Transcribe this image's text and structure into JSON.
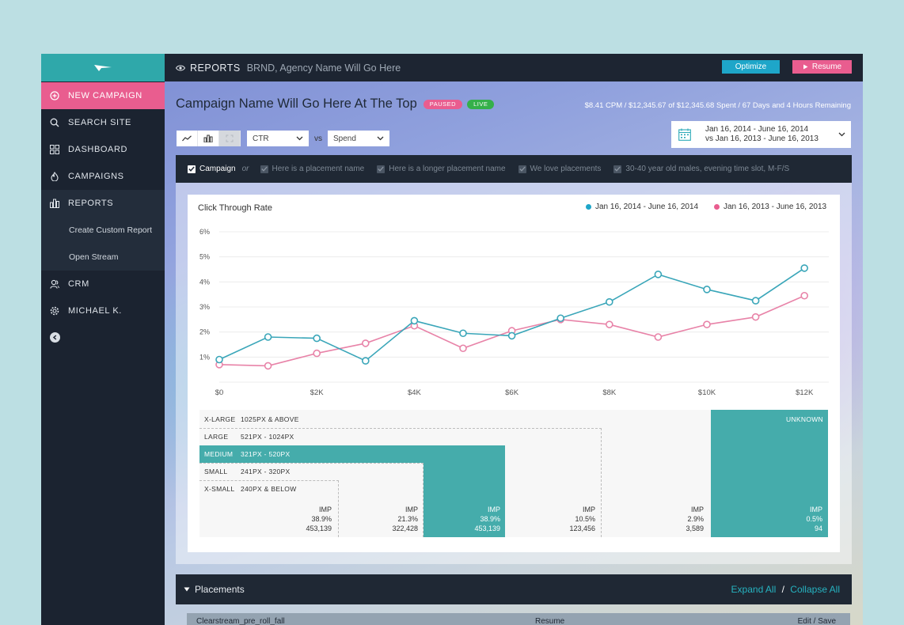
{
  "sidebar": {
    "items": [
      {
        "label": "NEW CAMPAIGN",
        "icon": "plus-circle-icon"
      },
      {
        "label": "SEARCH SITE",
        "icon": "search-icon"
      },
      {
        "label": "DASHBOARD",
        "icon": "grid-icon"
      },
      {
        "label": "CAMPAIGNS",
        "icon": "flame-icon"
      },
      {
        "label": "REPORTS",
        "icon": "bar-chart-icon"
      },
      {
        "label": "CRM",
        "icon": "users-icon"
      },
      {
        "label": "MICHAEL K.",
        "icon": "gear-icon"
      }
    ],
    "sub_items": [
      "Create Custom Report",
      "Open Stream"
    ]
  },
  "header": {
    "section": "REPORTS",
    "agency": "BRND, Agency Name Will Go Here",
    "optimize_label": "Optimize",
    "resume_label": "Resume"
  },
  "campaign": {
    "name": "Campaign Name Will Go Here At The Top",
    "badges": [
      "PAUSED",
      "LIVE"
    ],
    "spent": "$8.41 CPM / $12,345.67 of $12,345.68 Spent / 67 Days and 4 Hours Remaining"
  },
  "controls": {
    "metric": "CTR",
    "vs": "vs",
    "compare": "Spend",
    "date_range_1": "Jan 16, 2014 - June 16, 2014",
    "date_range_2": "vs Jan 16, 2013 - June 16, 2013"
  },
  "filters": {
    "campaign": "Campaign",
    "or": "or",
    "placements": [
      "Here is a placement name",
      "Here is a longer placement name",
      "We love placements",
      "30-40 year old males, evening time slot, M-F/S"
    ]
  },
  "chart_data": {
    "type": "line",
    "title": "Click Through Rate",
    "x": [
      0,
      1000,
      2000,
      3000,
      4000,
      5000,
      6000,
      7000,
      8000,
      9000,
      10000,
      11000,
      12000
    ],
    "x_ticks": [
      "$0",
      "$2K",
      "$4K",
      "$6K",
      "$8K",
      "$10K",
      "$12K"
    ],
    "y_ticks": [
      "1%",
      "2%",
      "3%",
      "4%",
      "5%",
      "6%"
    ],
    "ylim": [
      0,
      6
    ],
    "xlim": [
      0,
      12500
    ],
    "series": [
      {
        "name": "Jan 16, 2014 - June 16, 2014",
        "color": "#3aa6b9",
        "values": [
          0.9,
          1.8,
          1.75,
          0.85,
          2.45,
          1.95,
          1.85,
          2.55,
          3.2,
          4.3,
          3.7,
          3.25,
          4.55
        ]
      },
      {
        "name": "Jan 16, 2013 - June 16, 2013",
        "color": "#e883a8",
        "values": [
          0.7,
          0.65,
          1.15,
          1.55,
          2.25,
          1.35,
          2.05,
          2.5,
          2.3,
          1.8,
          2.3,
          2.6,
          3.45
        ]
      }
    ],
    "grid": true,
    "legend": "top-right"
  },
  "buckets": {
    "sizes": [
      {
        "name": "X-LARGE",
        "range": "1025PX & ABOVE"
      },
      {
        "name": "LARGE",
        "range": "521PX - 1024PX"
      },
      {
        "name": "MEDIUM",
        "range": "321PX - 520PX"
      },
      {
        "name": "SMALL",
        "range": "241PX - 320PX"
      },
      {
        "name": "X-SMALL",
        "range": "240PX & BELOW"
      }
    ],
    "unknown": "UNKNOWN",
    "columns": [
      {
        "label": "IMP",
        "pct": "38.9%",
        "count": "453,139"
      },
      {
        "label": "IMP",
        "pct": "21.3%",
        "count": "322,428"
      },
      {
        "label": "IMP",
        "pct": "38.9%",
        "count": "453,139"
      },
      {
        "label": "IMP",
        "pct": "10.5%",
        "count": "123,456"
      },
      {
        "label": "IMP",
        "pct": "2.9%",
        "count": "3,589"
      },
      {
        "label": "IMP",
        "pct": "0.5%",
        "count": "94"
      }
    ]
  },
  "placements": {
    "title": "Placements",
    "expand": "Expand All",
    "sep": "/",
    "collapse": "Collapse All",
    "row_label": "Clearstream_pre_roll_fall",
    "row_action": "Resume",
    "row_edit": "Edit / Save"
  },
  "colors": {
    "teal": "#2fa8aa",
    "pink": "#e95d8f",
    "blue": "#1ea6c9",
    "green": "#35b04a"
  }
}
